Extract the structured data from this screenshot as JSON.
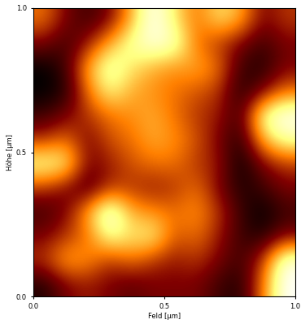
{
  "chart_data": {
    "type": "heatmap",
    "x_label": "Feld [µm]",
    "y_label": "Höhe [µm]",
    "xlim": [
      0.0,
      1.0
    ],
    "ylim": [
      0.0,
      1.0
    ],
    "xticks": [
      0.0,
      0.5,
      1.0
    ],
    "yticks": [
      0.0,
      0.5,
      1.0
    ],
    "cells": [
      [
        0.5,
        0.3,
        0.2,
        0.3,
        0.6,
        0.95,
        0.7,
        0.5,
        0.7,
        0.6,
        0.3,
        0.4
      ],
      [
        0.3,
        0.2,
        0.35,
        0.6,
        0.8,
        0.9,
        0.85,
        0.5,
        0.4,
        0.3,
        0.2,
        0.3
      ],
      [
        0.1,
        0.2,
        0.6,
        0.85,
        0.7,
        0.6,
        0.55,
        0.6,
        0.5,
        0.2,
        0.15,
        0.3
      ],
      [
        0.1,
        0.15,
        0.5,
        0.75,
        0.6,
        0.55,
        0.5,
        0.45,
        0.4,
        0.15,
        0.3,
        0.5
      ],
      [
        0.2,
        0.3,
        0.4,
        0.5,
        0.55,
        0.6,
        0.5,
        0.4,
        0.35,
        0.2,
        0.8,
        0.95
      ],
      [
        0.4,
        0.5,
        0.3,
        0.45,
        0.5,
        0.6,
        0.55,
        0.45,
        0.3,
        0.15,
        0.6,
        0.8
      ],
      [
        0.8,
        0.75,
        0.3,
        0.35,
        0.45,
        0.5,
        0.5,
        0.4,
        0.35,
        0.1,
        0.3,
        0.4
      ],
      [
        0.4,
        0.3,
        0.2,
        0.4,
        0.4,
        0.35,
        0.4,
        0.5,
        0.3,
        0.15,
        0.2,
        0.3
      ],
      [
        0.2,
        0.3,
        0.6,
        0.95,
        0.6,
        0.55,
        0.5,
        0.55,
        0.4,
        0.2,
        0.1,
        0.2
      ],
      [
        0.3,
        0.4,
        0.5,
        0.8,
        0.7,
        0.75,
        0.45,
        0.5,
        0.35,
        0.2,
        0.15,
        0.3
      ],
      [
        0.4,
        0.6,
        0.55,
        0.4,
        0.5,
        0.4,
        0.35,
        0.4,
        0.3,
        0.2,
        0.4,
        0.9
      ],
      [
        0.15,
        0.3,
        0.35,
        0.3,
        0.25,
        0.3,
        0.3,
        0.3,
        0.2,
        0.15,
        0.5,
        0.95
      ]
    ]
  }
}
